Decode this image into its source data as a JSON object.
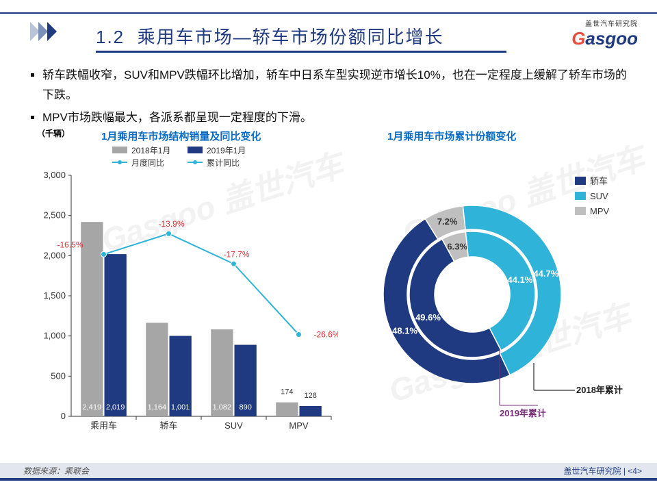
{
  "header": {
    "section_no": "1.2",
    "title": "乘用车市场—轿车市场份额同比增长",
    "logo_top": "盖世汽车研究院",
    "logo_brand_g": "G",
    "logo_brand_rest": "asgoo"
  },
  "bullets": [
    "轿车跌幅收窄，SUV和MPV跌幅环比增加，轿车中日系车型实现逆市增长10%，也在一定程度上缓解了轿车市场的下跌。",
    "MPV市场跌幅最大，各派系都呈现一定程度的下滑。"
  ],
  "bar_chart": {
    "type": "bar+line",
    "title": "1月乘用车市场结构销量及同比变化",
    "y_axis_label": "（千辆）",
    "categories": [
      "乘用车",
      "轿车",
      "SUV",
      "MPV"
    ],
    "series_2018": {
      "label": "2018年1月",
      "values": [
        2419,
        1164,
        1082,
        174
      ],
      "color": "#a6a6a6"
    },
    "series_2019": {
      "label": "2019年1月",
      "values": [
        2019,
        1001,
        890,
        128
      ],
      "color": "#1f3a80"
    },
    "line_monthly": {
      "label": "月度同比",
      "values_pct": [
        -16.5,
        -13.9,
        -17.7,
        -26.6
      ],
      "color": "#2fb3d8"
    },
    "line_cumulative": {
      "label": "累计同比",
      "color": "#2fb3d8"
    },
    "ylim": [
      0,
      3000
    ],
    "ytick_step": 500,
    "label_fontsize": 12,
    "axis_fontsize": 13,
    "bar_width": 0.34,
    "background": "#ffffff",
    "pct_label_color": "#e03030",
    "grid_color": "#333333"
  },
  "donut_chart": {
    "type": "donut-double",
    "title": "1月乘用车市场累计份额变化",
    "outer_ring": {
      "label": "2018年累计",
      "color_label": "#1f1f1f",
      "segments": [
        {
          "name": "轿车",
          "value": 48.1,
          "color": "#1f3a80"
        },
        {
          "name": "SUV",
          "value": 44.7,
          "color": "#2fb3d8"
        },
        {
          "name": "MPV",
          "value": 7.2,
          "color": "#bfbfbf"
        }
      ]
    },
    "inner_ring": {
      "label": "2019年累计",
      "color_label": "#7a2e7a",
      "segments": [
        {
          "name": "轿车",
          "value": 49.6,
          "color": "#1f3a80"
        },
        {
          "name": "SUV",
          "value": 44.1,
          "color": "#2fb3d8"
        },
        {
          "name": "MPV",
          "value": 6.3,
          "color": "#bfbfbf"
        }
      ]
    },
    "legend": [
      {
        "name": "轿车",
        "color": "#1f3a80"
      },
      {
        "name": "SUV",
        "color": "#2fb3d8"
      },
      {
        "name": "MPV",
        "color": "#bfbfbf"
      }
    ],
    "label_fontsize": 13
  },
  "footer": {
    "source": "数据来源：乘联会",
    "org": "盖世汽车研究院",
    "page": "<4>"
  },
  "watermark": "Gasgoo 盖世汽车"
}
